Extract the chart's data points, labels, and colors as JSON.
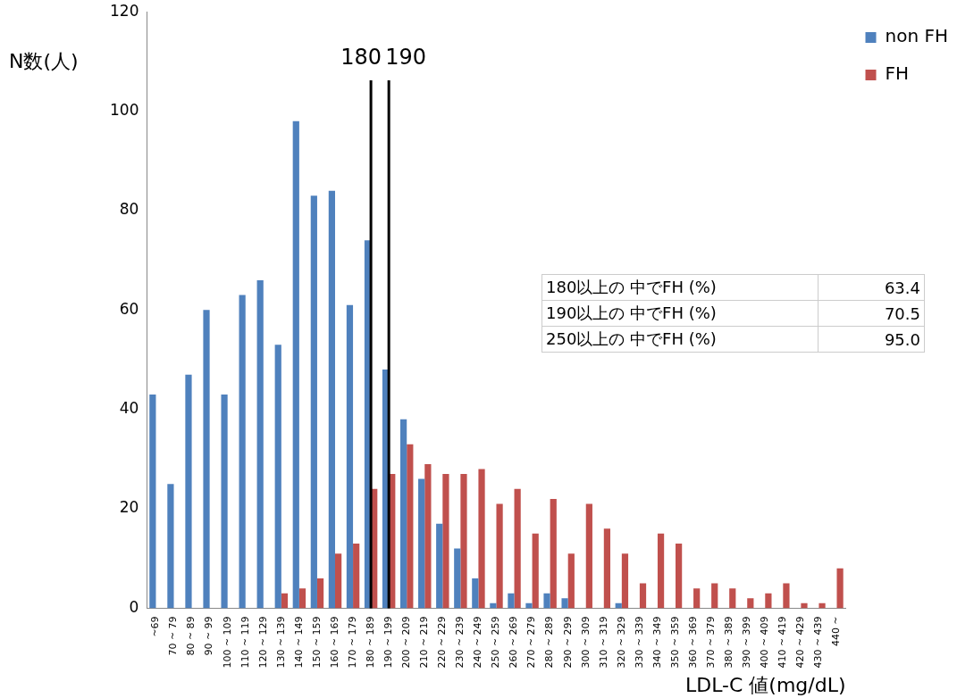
{
  "chart_data": {
    "type": "bar",
    "categories": [
      "~69",
      "70 ~ 79",
      "80 ~ 89",
      "90 ~ 99",
      "100 ~ 109",
      "110 ~ 119",
      "120 ~ 129",
      "130 ~ 139",
      "140 ~ 149",
      "150 ~ 159",
      "160 ~ 169",
      "170 ~ 179",
      "180 ~ 189",
      "190 ~ 199",
      "200 ~ 209",
      "210 ~ 219",
      "220 ~ 229",
      "230 ~ 239",
      "240 ~ 249",
      "250 ~ 259",
      "260 ~ 269",
      "270 ~ 279",
      "280 ~ 289",
      "290 ~ 299",
      "300 ~ 309",
      "310 ~ 319",
      "320 ~ 329",
      "330 ~ 339",
      "340 ~ 349",
      "350 ~ 359",
      "360 ~ 369",
      "370 ~ 379",
      "380 ~ 389",
      "390 ~ 399",
      "400 ~ 409",
      "410 ~ 419",
      "420 ~ 429",
      "430 ~ 439",
      "440 ~"
    ],
    "series": [
      {
        "name": "non FH",
        "color": "#4f81bd",
        "values": [
          43,
          25,
          47,
          60,
          43,
          63,
          66,
          53,
          98,
          83,
          84,
          61,
          74,
          48,
          38,
          26,
          17,
          12,
          6,
          1,
          3,
          1,
          3,
          2,
          0,
          0,
          1,
          0,
          0,
          0,
          0,
          0,
          0,
          0,
          0,
          0,
          0,
          0,
          0
        ]
      },
      {
        "name": "FH",
        "color": "#c0504d",
        "values": [
          0,
          0,
          0,
          0,
          0,
          0,
          0,
          3,
          4,
          6,
          11,
          13,
          24,
          27,
          33,
          29,
          27,
          27,
          28,
          21,
          24,
          15,
          22,
          11,
          21,
          16,
          11,
          5,
          15,
          13,
          4,
          5,
          4,
          2,
          3,
          5,
          1,
          1,
          8
        ]
      }
    ],
    "xlabel": "LDL-C 値(mg/dL)",
    "ylabel": "N数(人)",
    "ylim": [
      0,
      120
    ],
    "yticks": [
      0,
      20,
      40,
      60,
      80,
      100,
      120
    ],
    "grid": false,
    "legend": "right",
    "ref_lines": [
      {
        "axis": "x",
        "value": "180 ~ 189",
        "label": "180",
        "color": "#000000"
      },
      {
        "axis": "x",
        "value": "190 ~ 199",
        "label": "190",
        "color": "#000000"
      }
    ],
    "annotations": [
      "180以上の 中でFH (%)",
      "63.4",
      "190以上の 中でFH (%)",
      "70.5",
      "250以上の 中でFH (%)",
      "95.0"
    ]
  }
}
